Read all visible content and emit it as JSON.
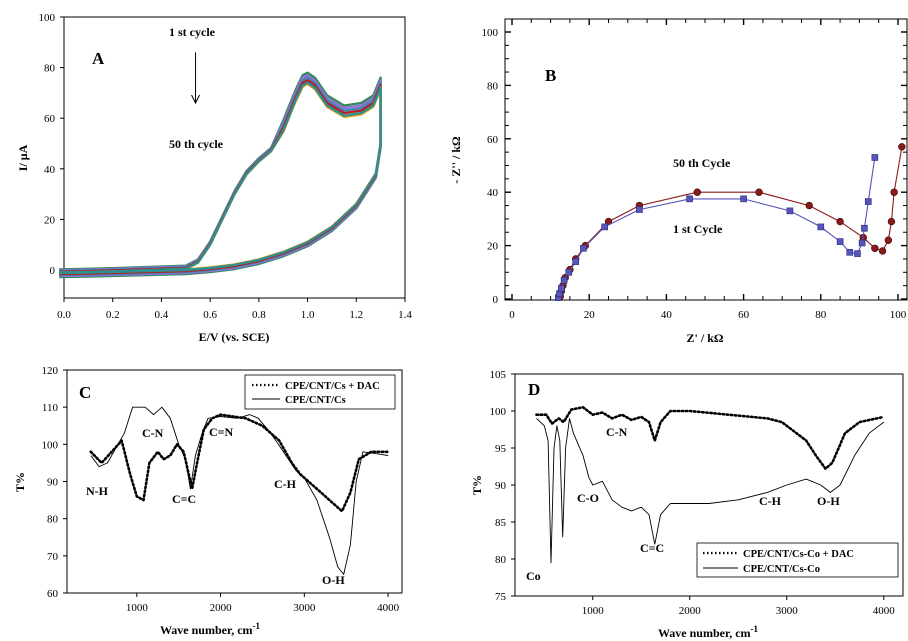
{
  "chart_data": [
    {
      "panel": "A",
      "type": "line",
      "xlabel": "E/V (vs. SCE)",
      "ylabel": "I/ μA",
      "xlim": [
        0,
        1.4
      ],
      "ylim": [
        -10,
        100
      ],
      "xticks": [
        "0.0",
        "0.2",
        "0.4",
        "0.6",
        "0.8",
        "1.0",
        "1.2",
        "1.4"
      ],
      "yticks": [
        "0",
        "20",
        "40",
        "60",
        "80",
        "100"
      ],
      "annotations": [
        "1 st cycle",
        "50 th cycle"
      ],
      "anodic_trace": [
        [
          -0.02,
          -1
        ],
        [
          0.2,
          -0.5
        ],
        [
          0.5,
          0.5
        ],
        [
          0.55,
          3
        ],
        [
          0.6,
          10
        ],
        [
          0.65,
          20
        ],
        [
          0.7,
          30
        ],
        [
          0.75,
          38
        ],
        [
          0.8,
          43
        ],
        [
          0.85,
          47
        ],
        [
          0.9,
          55
        ],
        [
          0.95,
          67
        ],
        [
          0.98,
          73
        ],
        [
          1.0,
          74
        ],
        [
          1.03,
          72
        ],
        [
          1.08,
          65
        ],
        [
          1.15,
          61
        ],
        [
          1.22,
          62
        ],
        [
          1.27,
          65
        ],
        [
          1.3,
          72
        ]
      ],
      "cathodic_trace": [
        [
          1.3,
          72
        ],
        [
          1.3,
          50
        ],
        [
          1.28,
          38
        ],
        [
          1.2,
          26
        ],
        [
          1.1,
          17
        ],
        [
          1.0,
          11
        ],
        [
          0.9,
          7
        ],
        [
          0.8,
          4
        ],
        [
          0.7,
          2
        ],
        [
          0.6,
          0.8
        ],
        [
          0.5,
          0
        ],
        [
          0.3,
          -0.5
        ],
        [
          0.1,
          -1
        ],
        [
          -0.02,
          -1.2
        ]
      ],
      "series": [
        {
          "color": "#2e8b57",
          "offset": 4
        },
        {
          "color": "#9370db",
          "offset": 3
        },
        {
          "color": "#4682b4",
          "offset": 2
        },
        {
          "color": "#b22222",
          "offset": 1
        },
        {
          "color": "#e8a317",
          "offset": -0.5
        },
        {
          "color": "#2f8f8f",
          "offset": 0
        }
      ],
      "arrow": {
        "from": [
          0.54,
          86
        ],
        "to": [
          0.54,
          66
        ]
      }
    },
    {
      "panel": "B",
      "type": "scatter",
      "xlabel": "Z' / kΩ",
      "ylabel": "- Z'' / kΩ",
      "xlim": [
        0,
        105
      ],
      "ylim": [
        0,
        105
      ],
      "xticks": [
        "0",
        "20",
        "40",
        "60",
        "80",
        "100"
      ],
      "yticks": [
        "0",
        "20",
        "40",
        "60",
        "80",
        "100"
      ],
      "annotations": [
        "50 th Cycle",
        "1 st Cycle"
      ],
      "series": [
        {
          "label": "50 th Cycle",
          "marker": "circle",
          "color": "#8b1a1a",
          "points": [
            [
              12.5,
              1
            ],
            [
              12.8,
              3
            ],
            [
              13.2,
              5
            ],
            [
              13.8,
              8
            ],
            [
              15,
              11
            ],
            [
              16.5,
              15
            ],
            [
              19,
              20
            ],
            [
              25,
              29
            ],
            [
              33,
              35
            ],
            [
              48,
              40
            ],
            [
              64,
              40
            ],
            [
              77,
              35
            ],
            [
              85,
              29
            ],
            [
              91,
              23
            ],
            [
              94,
              19
            ],
            [
              96,
              18
            ],
            [
              97.5,
              22
            ],
            [
              98.3,
              29
            ],
            [
              99,
              40
            ],
            [
              101,
              57
            ]
          ]
        },
        {
          "label": "1 st Cycle",
          "marker": "square",
          "color": "#5555bb",
          "points": [
            [
              12,
              0.5
            ],
            [
              12.3,
              2
            ],
            [
              12.8,
              4
            ],
            [
              13.5,
              7
            ],
            [
              14.7,
              10
            ],
            [
              16.5,
              14
            ],
            [
              18.5,
              19
            ],
            [
              24,
              27
            ],
            [
              33,
              33.5
            ],
            [
              46,
              37.5
            ],
            [
              60,
              37.5
            ],
            [
              72,
              33
            ],
            [
              80,
              27
            ],
            [
              85,
              21.5
            ],
            [
              87.5,
              17.5
            ],
            [
              89.5,
              17
            ],
            [
              90.7,
              21
            ],
            [
              91.3,
              26.5
            ],
            [
              92.3,
              36.5
            ],
            [
              94,
              53
            ]
          ]
        }
      ]
    },
    {
      "panel": "C",
      "type": "line",
      "xlabel": "Wave number, cm",
      "xlabel_sup": "-1",
      "ylabel": "T%",
      "xlim": [
        250,
        4250
      ],
      "ylim": [
        60,
        120
      ],
      "xticks": [
        "1000",
        "2000",
        "3000",
        "4000"
      ],
      "yticks": [
        "60",
        "70",
        "80",
        "90",
        "100",
        "110",
        "120"
      ],
      "annotations": [
        "N-H",
        "C-N",
        "C=C",
        "C=N",
        "C-H",
        "O-H"
      ],
      "series": [
        {
          "name": "CPE/CNT/Cs + DAC",
          "style": "dotted",
          "points": [
            [
              450,
              98
            ],
            [
              580,
              95
            ],
            [
              700,
              98
            ],
            [
              820,
              101
            ],
            [
              920,
              92
            ],
            [
              1000,
              86
            ],
            [
              1080,
              85
            ],
            [
              1150,
              95
            ],
            [
              1250,
              98
            ],
            [
              1320,
              96
            ],
            [
              1400,
              97
            ],
            [
              1480,
              100
            ],
            [
              1560,
              98
            ],
            [
              1620,
              92
            ],
            [
              1660,
              88
            ],
            [
              1720,
              95
            ],
            [
              1800,
              104
            ],
            [
              1900,
              107
            ],
            [
              2000,
              108
            ],
            [
              2150,
              107.5
            ],
            [
              2300,
              107
            ],
            [
              2500,
              105
            ],
            [
              2700,
              101
            ],
            [
              2850,
              95
            ],
            [
              2950,
              92
            ],
            [
              3050,
              90
            ],
            [
              3200,
              87
            ],
            [
              3350,
              84
            ],
            [
              3450,
              82
            ],
            [
              3550,
              87
            ],
            [
              3650,
              96
            ],
            [
              3800,
              98
            ],
            [
              4000,
              98
            ]
          ]
        },
        {
          "name": "CPE/CNT/Cs",
          "style": "solid",
          "points": [
            [
              450,
              97
            ],
            [
              550,
              94
            ],
            [
              650,
              95
            ],
            [
              750,
              99
            ],
            [
              850,
              103
            ],
            [
              950,
              110
            ],
            [
              1100,
              110
            ],
            [
              1200,
              108
            ],
            [
              1300,
              110
            ],
            [
              1400,
              107
            ],
            [
              1500,
              100
            ],
            [
              1580,
              96
            ],
            [
              1640,
              88
            ],
            [
              1700,
              97
            ],
            [
              1780,
              103
            ],
            [
              1850,
              107
            ],
            [
              2000,
              107.5
            ],
            [
              2200,
              107
            ],
            [
              2350,
              108
            ],
            [
              2450,
              107
            ],
            [
              2600,
              103
            ],
            [
              2750,
              98
            ],
            [
              2900,
              93
            ],
            [
              3000,
              91
            ],
            [
              3150,
              85
            ],
            [
              3300,
              75
            ],
            [
              3400,
              67
            ],
            [
              3470,
              65
            ],
            [
              3550,
              73
            ],
            [
              3620,
              90
            ],
            [
              3700,
              98
            ],
            [
              3850,
              97.5
            ],
            [
              4000,
              97
            ]
          ]
        }
      ]
    },
    {
      "panel": "D",
      "type": "line",
      "xlabel": "Wave number, cm",
      "xlabel_sup": "-1",
      "ylabel": "T%",
      "xlim": [
        250,
        4250
      ],
      "ylim": [
        75,
        105
      ],
      "xticks": [
        "1000",
        "2000",
        "3000",
        "4000"
      ],
      "yticks": [
        "75",
        "80",
        "85",
        "90",
        "95",
        "100",
        "105"
      ],
      "annotations": [
        "C-N",
        "C-O",
        "C=C",
        "C-H",
        "O-H",
        "Co"
      ],
      "series": [
        {
          "name": "CPE/CNT/Cs-Co + DAC",
          "style": "dotted",
          "points": [
            [
              420,
              99.5
            ],
            [
              520,
              99.5
            ],
            [
              580,
              98.3
            ],
            [
              650,
              99
            ],
            [
              700,
              98.5
            ],
            [
              780,
              100.2
            ],
            [
              900,
              100.5
            ],
            [
              1000,
              99.5
            ],
            [
              1100,
              99.8
            ],
            [
              1200,
              99
            ],
            [
              1300,
              99.5
            ],
            [
              1400,
              98.8
            ],
            [
              1500,
              99.2
            ],
            [
              1580,
              98.5
            ],
            [
              1640,
              96
            ],
            [
              1700,
              98.5
            ],
            [
              1800,
              100
            ],
            [
              2000,
              100
            ],
            [
              2400,
              99.5
            ],
            [
              2800,
              99
            ],
            [
              2950,
              98.5
            ],
            [
              3050,
              97.5
            ],
            [
              3200,
              96
            ],
            [
              3300,
              94
            ],
            [
              3400,
              92.2
            ],
            [
              3470,
              93
            ],
            [
              3600,
              97
            ],
            [
              3750,
              98.5
            ],
            [
              4000,
              99.2
            ]
          ]
        },
        {
          "name": "CPE/CNT/Cs-Co",
          "style": "solid",
          "points": [
            [
              420,
              99
            ],
            [
              500,
              98
            ],
            [
              540,
              96
            ],
            [
              570,
              79.5
            ],
            [
              600,
              95
            ],
            [
              630,
              98
            ],
            [
              660,
              96
            ],
            [
              690,
              83
            ],
            [
              720,
              95
            ],
            [
              760,
              99
            ],
            [
              800,
              97
            ],
            [
              900,
              94
            ],
            [
              960,
              91
            ],
            [
              1000,
              90
            ],
            [
              1100,
              90.5
            ],
            [
              1200,
              88
            ],
            [
              1300,
              87
            ],
            [
              1400,
              86.5
            ],
            [
              1500,
              87
            ],
            [
              1580,
              86
            ],
            [
              1640,
              82
            ],
            [
              1700,
              86
            ],
            [
              1800,
              87.5
            ],
            [
              2000,
              87.5
            ],
            [
              2200,
              87.5
            ],
            [
              2500,
              88
            ],
            [
              2800,
              89
            ],
            [
              3000,
              90
            ],
            [
              3200,
              90.8
            ],
            [
              3350,
              90
            ],
            [
              3450,
              89
            ],
            [
              3550,
              90
            ],
            [
              3700,
              94
            ],
            [
              3850,
              97
            ],
            [
              4000,
              98.5
            ]
          ]
        }
      ]
    }
  ]
}
